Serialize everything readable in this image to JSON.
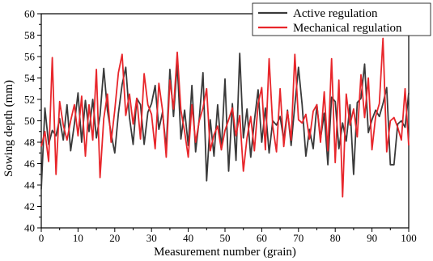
{
  "chart_data": {
    "type": "line",
    "xlabel": "Measurement number (grain)",
    "ylabel": "Sowing depth (mm)",
    "xlim": [
      0,
      100
    ],
    "ylim": [
      40,
      60
    ],
    "xticks": [
      0,
      10,
      20,
      30,
      40,
      50,
      60,
      70,
      80,
      90,
      100
    ],
    "yticks": [
      40,
      42,
      44,
      46,
      48,
      50,
      52,
      54,
      56,
      58,
      60
    ],
    "grid": false,
    "legend_position": "top-right",
    "series": [
      {
        "name": "Active regulation",
        "color": "#3a3a3a",
        "x": [
          0,
          1,
          2,
          3,
          4,
          5,
          6,
          7,
          8,
          9,
          10,
          11,
          12,
          13,
          14,
          15,
          16,
          17,
          18,
          19,
          20,
          21,
          22,
          23,
          24,
          25,
          26,
          27,
          28,
          29,
          30,
          31,
          32,
          33,
          34,
          35,
          36,
          37,
          38,
          39,
          40,
          41,
          42,
          43,
          44,
          45,
          46,
          47,
          48,
          49,
          50,
          51,
          52,
          53,
          54,
          55,
          56,
          57,
          58,
          59,
          60,
          61,
          62,
          63,
          64,
          65,
          66,
          67,
          68,
          69,
          70,
          71,
          72,
          73,
          74,
          75,
          76,
          77,
          78,
          79,
          80,
          81,
          82,
          83,
          84,
          85,
          86,
          87,
          88,
          89,
          90,
          91,
          92,
          93,
          94,
          95,
          96,
          97,
          98,
          99,
          100
        ],
        "values": [
          43.6,
          51.2,
          47.8,
          49.1,
          48.6,
          50.2,
          48.2,
          51.5,
          47.2,
          49.7,
          52.6,
          48.0,
          51.9,
          49.0,
          52.0,
          48.4,
          50.5,
          54.9,
          51.0,
          48.8,
          47.0,
          50.7,
          53.4,
          55.0,
          50.3,
          47.8,
          52.1,
          51.5,
          47.8,
          50.8,
          51.6,
          53.3,
          49.2,
          50.8,
          47.4,
          54.8,
          50.4,
          55.4,
          48.3,
          51.0,
          47.7,
          53.3,
          47.1,
          50.2,
          54.5,
          44.4,
          50.1,
          46.7,
          51.5,
          47.3,
          53.9,
          45.3,
          51.6,
          46.3,
          56.3,
          48.4,
          51.1,
          46.6,
          50.0,
          52.9,
          48.0,
          51.2,
          47.0,
          50.0,
          49.6,
          50.4,
          48.2,
          51.0,
          47.7,
          51.5,
          55.0,
          51.5,
          46.7,
          49.2,
          47.4,
          51.5,
          48.3,
          50.7,
          45.9,
          52.2,
          51.8,
          47.4,
          49.8,
          48.1,
          51.5,
          45.0,
          51.7,
          52.1,
          55.3,
          48.9,
          50.1,
          51.0,
          50.4,
          51.6,
          53.1,
          45.9,
          45.9,
          49.7,
          50.0,
          49.4,
          52.6
        ]
      },
      {
        "name": "Mechanical regulation",
        "color": "#e8262b",
        "x": [
          0,
          1,
          2,
          3,
          4,
          5,
          6,
          7,
          8,
          9,
          10,
          11,
          12,
          13,
          14,
          15,
          16,
          17,
          18,
          19,
          20,
          21,
          22,
          23,
          24,
          25,
          26,
          27,
          28,
          29,
          30,
          31,
          32,
          33,
          34,
          35,
          36,
          37,
          38,
          39,
          40,
          41,
          42,
          43,
          44,
          45,
          46,
          47,
          48,
          49,
          50,
          51,
          52,
          53,
          54,
          55,
          56,
          57,
          58,
          59,
          60,
          61,
          62,
          63,
          64,
          65,
          66,
          67,
          68,
          69,
          70,
          71,
          72,
          73,
          74,
          75,
          76,
          77,
          78,
          79,
          80,
          81,
          82,
          83,
          84,
          85,
          86,
          87,
          88,
          89,
          90,
          91,
          92,
          93,
          94,
          95,
          96,
          97,
          98,
          99,
          100
        ],
        "values": [
          47.6,
          49.0,
          46.2,
          55.9,
          45.0,
          51.8,
          49.6,
          48.2,
          50.0,
          51.5,
          48.6,
          52.3,
          46.7,
          51.5,
          48.2,
          54.8,
          44.7,
          50.2,
          52.5,
          48.0,
          51.0,
          54.5,
          56.2,
          50.5,
          52.5,
          49.7,
          52.1,
          48.3,
          54.4,
          51.5,
          50.6,
          47.4,
          53.5,
          51.0,
          46.6,
          53.8,
          51.1,
          56.4,
          51.0,
          49.0,
          46.6,
          51.5,
          48.0,
          50.0,
          51.2,
          53.0,
          47.2,
          48.7,
          49.5,
          47.3,
          49.1,
          50.1,
          51.2,
          48.6,
          50.5,
          45.3,
          48.4,
          50.4,
          47.2,
          51.6,
          53.1,
          47.3,
          55.8,
          49.5,
          47.1,
          53.0,
          47.6,
          50.9,
          48.2,
          56.2,
          50.1,
          49.8,
          50.6,
          48.3,
          50.9,
          51.5,
          48.0,
          52.7,
          47.2,
          55.8,
          46.1,
          53.8,
          42.9,
          52.5,
          49.6,
          51.1,
          48.5,
          54.3,
          50.3,
          54.0,
          47.3,
          50.4,
          51.6,
          57.7,
          47.1,
          50.0,
          50.3,
          49.4,
          48.2,
          53.0,
          47.7
        ]
      }
    ]
  }
}
